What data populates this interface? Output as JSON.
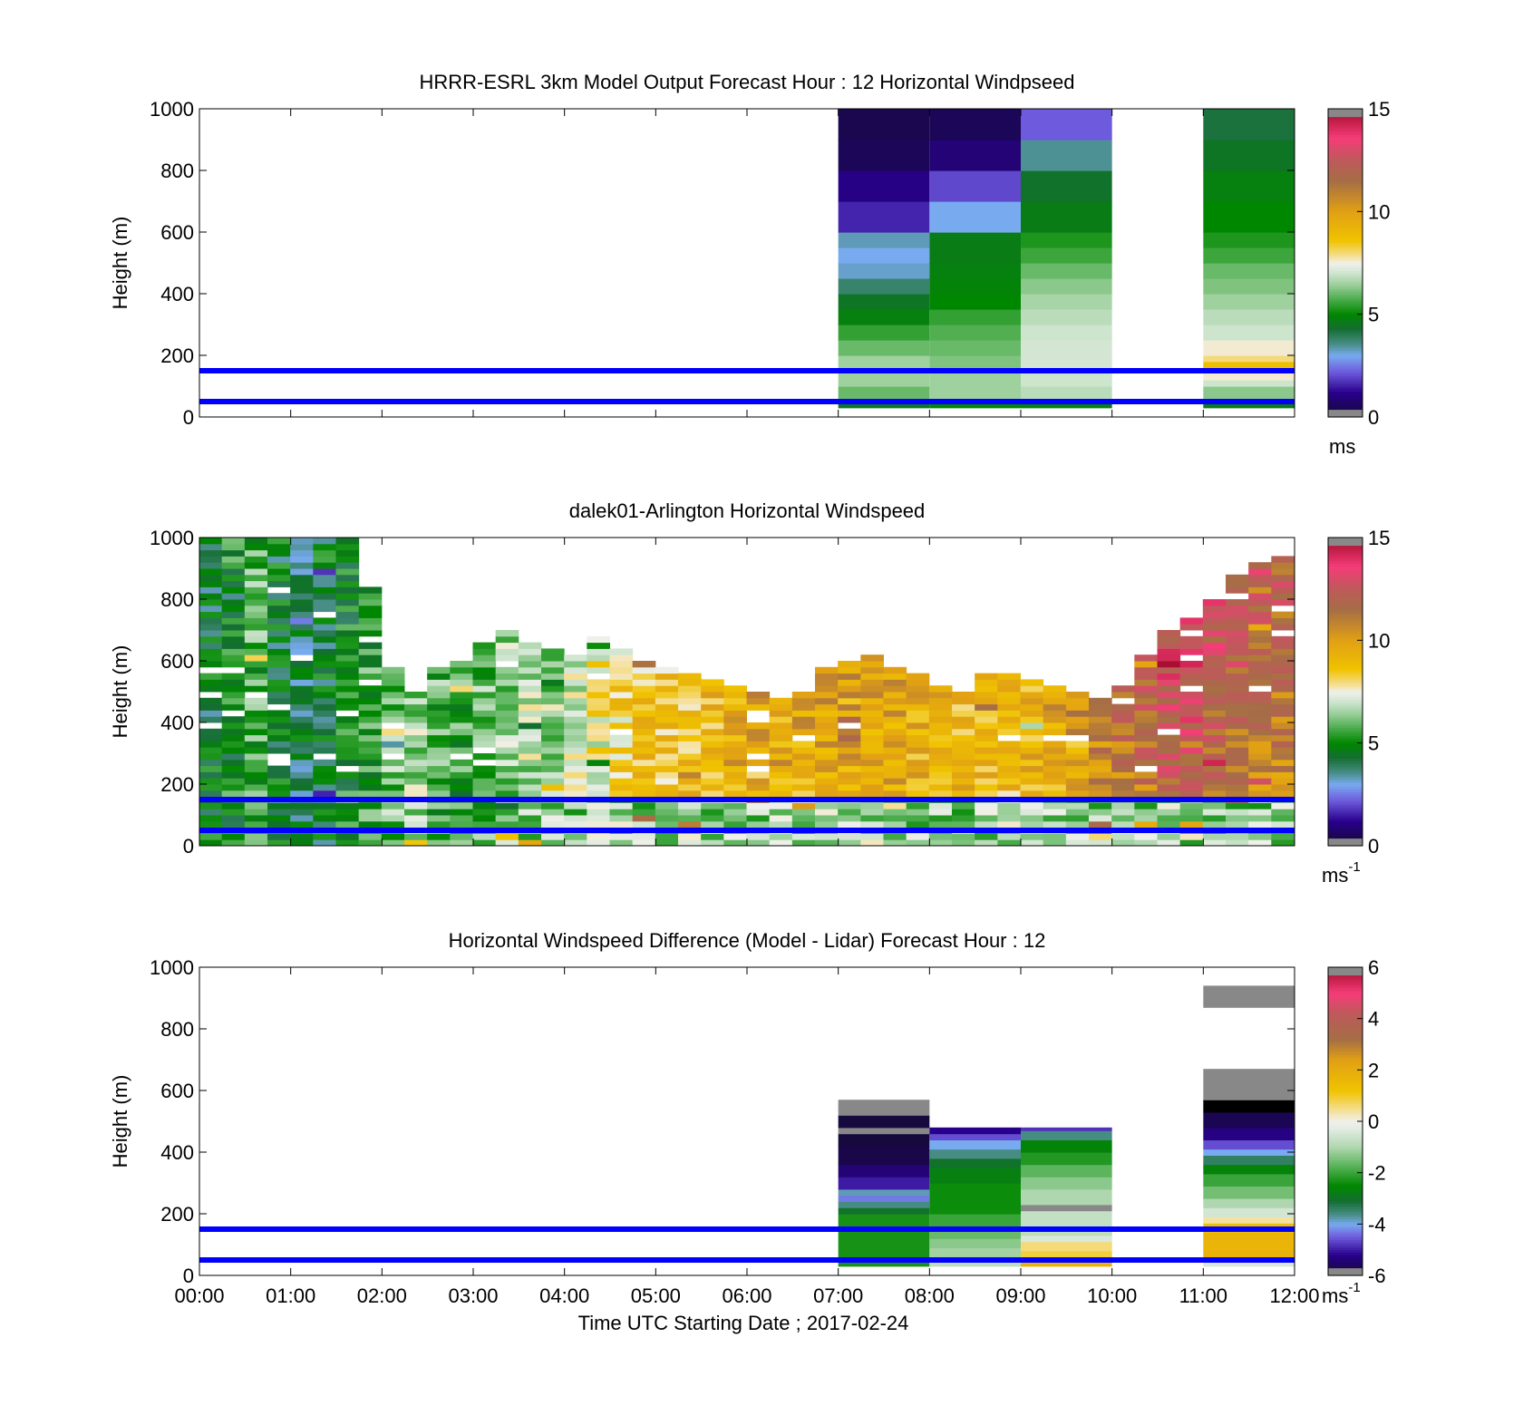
{
  "x_axis": {
    "label": "Time UTC  Starting Date ; 2017-02-24",
    "ticks": [
      "00:00",
      "01:00",
      "02:00",
      "03:00",
      "04:00",
      "05:00",
      "06:00",
      "07:00",
      "08:00",
      "09:00",
      "10:00",
      "11:00",
      "12:00"
    ]
  },
  "chart_data": [
    {
      "type": "heatmap",
      "title": "HRRR-ESRL 3km Model Output   Forecast Hour : 12 Horizontal Windpseed",
      "ylabel": "Height (m)",
      "xlim": [
        0,
        12
      ],
      "ylim": [
        0,
        1000
      ],
      "yticks": [
        "0",
        "200",
        "400",
        "600",
        "800",
        "1000"
      ],
      "colorbar": {
        "min": 0,
        "max": 15,
        "ticks": [
          "0",
          "5",
          "10",
          "15"
        ],
        "unit": "ms",
        "unit_sup": "",
        "palette": "speed"
      },
      "reference_lines_m": [
        50,
        150
      ],
      "reference_line_color": "#0000ff",
      "columns": [
        {
          "x0": 7,
          "x1": 8,
          "cells": [
            [
              30,
              50,
              4.5
            ],
            [
              50,
              100,
              6.0
            ],
            [
              100,
              150,
              6.5
            ],
            [
              150,
              200,
              6.5
            ],
            [
              200,
              250,
              6.0
            ],
            [
              250,
              300,
              5.5
            ],
            [
              300,
              350,
              4.8
            ],
            [
              350,
              400,
              4.5
            ],
            [
              400,
              450,
              3.8
            ],
            [
              450,
              500,
              3.2
            ],
            [
              500,
              550,
              3.0
            ],
            [
              550,
              600,
              3.3
            ],
            [
              600,
              700,
              1.6
            ],
            [
              700,
              800,
              1.1
            ],
            [
              800,
              900,
              0.5
            ],
            [
              900,
              1000,
              0.4
            ]
          ]
        },
        {
          "x0": 8,
          "x1": 9,
          "cells": [
            [
              30,
              50,
              5.0
            ],
            [
              50,
              100,
              6.5
            ],
            [
              100,
              150,
              6.5
            ],
            [
              150,
              200,
              6.2
            ],
            [
              200,
              250,
              6.0
            ],
            [
              250,
              300,
              5.8
            ],
            [
              300,
              350,
              5.5
            ],
            [
              350,
              400,
              5.0
            ],
            [
              400,
              450,
              4.9
            ],
            [
              450,
              500,
              4.8
            ],
            [
              500,
              600,
              4.7
            ],
            [
              600,
              700,
              3.0
            ],
            [
              700,
              800,
              2.0
            ],
            [
              800,
              900,
              0.9
            ],
            [
              900,
              1000,
              0.5
            ]
          ]
        },
        {
          "x0": 9,
          "x1": 10,
          "cells": [
            [
              30,
              50,
              4.8
            ],
            [
              50,
              100,
              6.8
            ],
            [
              100,
              150,
              7.0
            ],
            [
              150,
              250,
              7.1
            ],
            [
              250,
              300,
              7.0
            ],
            [
              300,
              350,
              6.8
            ],
            [
              350,
              400,
              6.6
            ],
            [
              400,
              450,
              6.3
            ],
            [
              450,
              500,
              6.0
            ],
            [
              500,
              550,
              5.6
            ],
            [
              550,
              600,
              5.3
            ],
            [
              600,
              700,
              4.7
            ],
            [
              700,
              800,
              4.4
            ],
            [
              800,
              900,
              3.5
            ],
            [
              900,
              1000,
              2.2
            ]
          ]
        },
        {
          "x0": 11,
          "x1": 12,
          "cells": [
            [
              30,
              50,
              4.7
            ],
            [
              50,
              100,
              6.3
            ],
            [
              100,
              120,
              7.0
            ],
            [
              120,
              150,
              7.6
            ],
            [
              150,
              180,
              8.8
            ],
            [
              180,
              200,
              8.0
            ],
            [
              200,
              250,
              7.6
            ],
            [
              250,
              300,
              7.0
            ],
            [
              300,
              350,
              6.8
            ],
            [
              350,
              400,
              6.5
            ],
            [
              400,
              450,
              6.2
            ],
            [
              450,
              500,
              6.0
            ],
            [
              500,
              550,
              5.6
            ],
            [
              550,
              600,
              5.3
            ],
            [
              600,
              700,
              5.0
            ],
            [
              700,
              800,
              4.8
            ],
            [
              800,
              900,
              4.5
            ],
            [
              900,
              1000,
              4.2
            ]
          ]
        }
      ]
    },
    {
      "type": "heatmap",
      "title": "dalek01-Arlington  Horizontal Windspeed",
      "ylabel": "Height (m)",
      "xlim": [
        0,
        12
      ],
      "ylim": [
        0,
        1000
      ],
      "yticks": [
        "0",
        "200",
        "400",
        "600",
        "800",
        "1000"
      ],
      "colorbar": {
        "min": 0,
        "max": 15,
        "ticks": [
          "0",
          "5",
          "10",
          "15"
        ],
        "unit": "ms",
        "unit_sup": "-1",
        "palette": "speed"
      },
      "reference_lines_m": [
        50,
        150
      ],
      "reference_line_color": "#0000ff",
      "time_step_h": 0.25,
      "range_gate_m": 20,
      "profile_time_h": [
        0.12,
        0.37,
        0.62,
        0.87,
        1.12,
        1.37,
        1.62,
        1.87,
        2.12,
        2.37,
        2.62,
        2.87,
        3.12,
        3.37,
        3.62,
        3.87,
        4.12,
        4.37,
        4.62,
        4.87,
        5.12,
        5.37,
        5.62,
        5.87,
        6.12,
        6.37,
        6.62,
        6.87,
        7.12,
        7.37,
        7.62,
        7.87,
        8.12,
        8.37,
        8.62,
        8.87,
        9.12,
        9.37,
        9.62,
        9.87,
        10.12,
        10.37,
        10.62,
        10.87,
        11.12,
        11.37,
        11.62,
        11.87
      ],
      "profile_top_m": [
        1000,
        1000,
        1000,
        1000,
        1000,
        1000,
        1000,
        850,
        580,
        500,
        580,
        600,
        650,
        700,
        650,
        650,
        620,
        670,
        640,
        600,
        580,
        560,
        540,
        520,
        500,
        480,
        500,
        580,
        600,
        620,
        580,
        560,
        520,
        500,
        560,
        560,
        540,
        520,
        500,
        480,
        520,
        620,
        700,
        740,
        800,
        880,
        920,
        940
      ],
      "mean_speed_ms": [
        4.5,
        5.0,
        5.8,
        4.5,
        4.2,
        4.5,
        5.0,
        5.5,
        6.2,
        6.5,
        5.8,
        5.5,
        6.0,
        6.5,
        6.8,
        6.5,
        7.2,
        7.6,
        8.2,
        8.6,
        8.5,
        8.7,
        9.0,
        9.5,
        9.6,
        9.2,
        9.6,
        9.8,
        9.8,
        9.6,
        9.6,
        9.4,
        9.2,
        9.0,
        9.0,
        8.8,
        9.2,
        9.6,
        10.2,
        10.8,
        11.2,
        11.5,
        12.4,
        12.6,
        11.8,
        11.5,
        11.0,
        10.8
      ]
    },
    {
      "type": "heatmap",
      "title": "Horizontal Windspeed Difference (Model - Lidar) Forecast Hour : 12",
      "ylabel": "Height (m)",
      "xlim": [
        0,
        12
      ],
      "ylim": [
        0,
        1000
      ],
      "yticks": [
        "0",
        "200",
        "400",
        "600",
        "800",
        "1000"
      ],
      "colorbar": {
        "min": -6,
        "max": 6,
        "ticks": [
          "-6",
          "-4",
          "-2",
          "0",
          "2",
          "4",
          "6"
        ],
        "unit": "ms",
        "unit_sup": "-1",
        "palette": "diff"
      },
      "reference_lines_m": [
        50,
        150
      ],
      "reference_line_color": "#0000ff",
      "columns": [
        {
          "x0": 7,
          "x1": 8,
          "cells": [
            [
              30,
              200,
              -2.3
            ],
            [
              200,
              220,
              -3.0
            ],
            [
              220,
              240,
              -3.6
            ],
            [
              240,
              260,
              -4.3
            ],
            [
              260,
              280,
              -3.8
            ],
            [
              280,
              320,
              -5.0
            ],
            [
              320,
              360,
              -5.4
            ],
            [
              360,
              420,
              -5.8
            ],
            [
              420,
              460,
              -5.9
            ],
            [
              460,
              480,
              -6.5
            ],
            [
              480,
              520,
              -5.9
            ],
            [
              520,
              540,
              -6.5
            ],
            [
              540,
              570,
              -6.5
            ]
          ]
        },
        {
          "x0": 8,
          "x1": 9,
          "cells": [
            [
              30,
              60,
              -0.8
            ],
            [
              60,
              90,
              -1.1
            ],
            [
              90,
              120,
              -1.3
            ],
            [
              120,
              150,
              -1.6
            ],
            [
              150,
              200,
              -2.0
            ],
            [
              200,
              300,
              -2.4
            ],
            [
              300,
              350,
              -2.7
            ],
            [
              350,
              380,
              -3.0
            ],
            [
              380,
              410,
              -3.6
            ],
            [
              410,
              440,
              -4.0
            ],
            [
              440,
              460,
              -4.6
            ],
            [
              460,
              480,
              -5.2
            ]
          ]
        },
        {
          "x0": 9,
          "x1": 10,
          "cells": [
            [
              30,
              50,
              1.8
            ],
            [
              50,
              80,
              0.9
            ],
            [
              80,
              110,
              0.6
            ],
            [
              110,
              130,
              -0.4
            ],
            [
              130,
              150,
              -0.8
            ],
            [
              150,
              210,
              -0.7
            ],
            [
              210,
              230,
              -6.5
            ],
            [
              230,
              280,
              -1.0
            ],
            [
              280,
              320,
              -1.3
            ],
            [
              320,
              360,
              -1.7
            ],
            [
              360,
              400,
              -2.2
            ],
            [
              400,
              440,
              -2.6
            ],
            [
              440,
              470,
              -3.6
            ],
            [
              470,
              480,
              -4.8
            ]
          ]
        },
        {
          "x0": 11,
          "x1": 12,
          "cells": [
            [
              30,
              50,
              -0.4
            ],
            [
              50,
              80,
              1.8
            ],
            [
              80,
              140,
              1.7
            ],
            [
              140,
              170,
              1.3
            ],
            [
              170,
              190,
              0.4
            ],
            [
              190,
              220,
              -0.5
            ],
            [
              220,
              250,
              -1.0
            ],
            [
              250,
              290,
              -1.5
            ],
            [
              290,
              330,
              -2.0
            ],
            [
              330,
              360,
              -2.6
            ],
            [
              360,
              390,
              -3.4
            ],
            [
              390,
              410,
              -4.0
            ],
            [
              410,
              440,
              -4.6
            ],
            [
              440,
              480,
              -5.3
            ],
            [
              480,
              530,
              -5.7
            ],
            [
              530,
              570,
              -6.0
            ],
            [
              570,
              670,
              -6.5
            ],
            [
              870,
              940,
              -6.5
            ]
          ]
        }
      ]
    }
  ]
}
